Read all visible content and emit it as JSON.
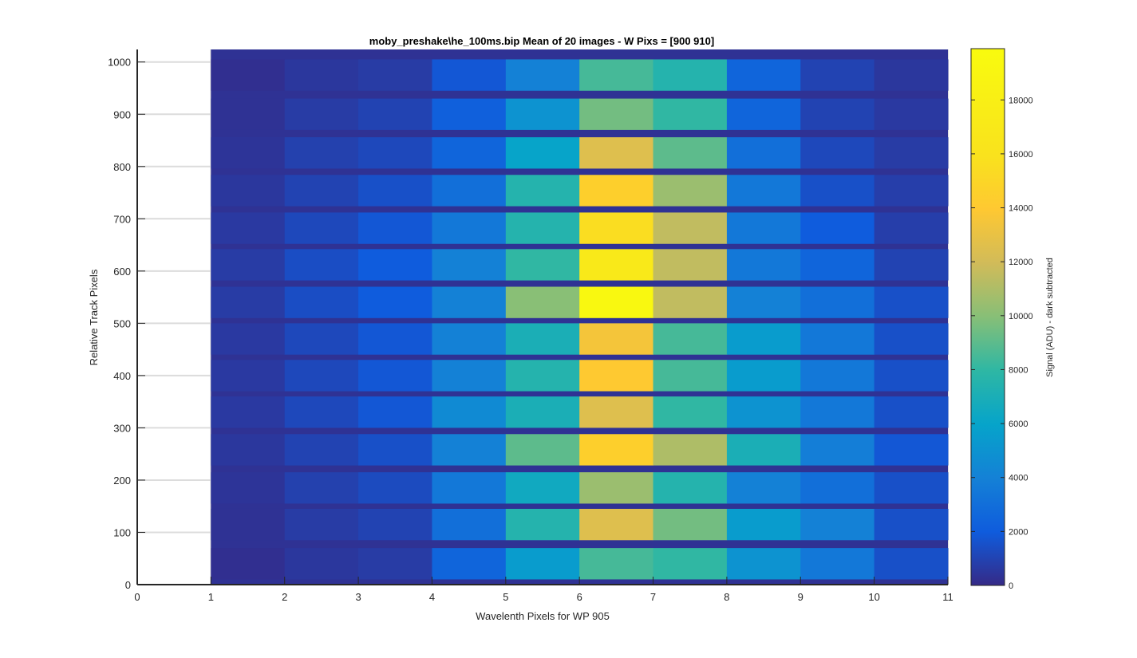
{
  "chart_data": {
    "type": "heatmap",
    "title": "moby_preshake\\he_100ms.bip  Mean of 20 images - W Pixs = [900  910]",
    "xlabel": "Wavelenth Pixels for WP 905",
    "ylabel": "Relative Track Pixels",
    "xlim": [
      0,
      11
    ],
    "ylim": [
      0,
      1024
    ],
    "grid": true,
    "colormap": "parula",
    "x_ticks": [
      "0",
      "1",
      "2",
      "3",
      "4",
      "5",
      "6",
      "7",
      "8",
      "9",
      "10",
      "11"
    ],
    "y_ticks": [
      "0",
      "100",
      "200",
      "300",
      "400",
      "500",
      "600",
      "700",
      "800",
      "900",
      "1000"
    ],
    "colorbar": {
      "label": "Signal (ADU) - dark subtracted",
      "range": [
        0,
        19900
      ],
      "ticks": [
        "0",
        "2000",
        "4000",
        "6000",
        "8000",
        "10000",
        "12000",
        "14000",
        "16000",
        "18000"
      ]
    },
    "columns": [
      1,
      2,
      3,
      4,
      5,
      6,
      7,
      8,
      9,
      10
    ],
    "bands": [
      {
        "y0": 10,
        "y1": 70,
        "values": [
          200,
          500,
          700,
          2500,
          5500,
          8500,
          8000,
          5000,
          3500,
          1500
        ]
      },
      {
        "y0": 85,
        "y1": 145,
        "values": [
          300,
          700,
          1000,
          3000,
          7500,
          12500,
          9500,
          5500,
          4000,
          1500
        ]
      },
      {
        "y0": 155,
        "y1": 215,
        "values": [
          400,
          900,
          1300,
          3500,
          6500,
          10500,
          7500,
          4000,
          3000,
          1500
        ]
      },
      {
        "y0": 228,
        "y1": 288,
        "values": [
          500,
          1000,
          1500,
          4000,
          9000,
          14500,
          11000,
          7000,
          3800,
          1800
        ]
      },
      {
        "y0": 300,
        "y1": 360,
        "values": [
          600,
          1200,
          1800,
          4500,
          7000,
          12500,
          8000,
          5000,
          3500,
          1500
        ]
      },
      {
        "y0": 370,
        "y1": 430,
        "values": [
          600,
          1200,
          1800,
          4000,
          7500,
          14000,
          8500,
          5500,
          3500,
          1500
        ]
      },
      {
        "y0": 440,
        "y1": 500,
        "values": [
          600,
          1200,
          1800,
          4000,
          7000,
          13500,
          8500,
          5500,
          3500,
          1500
        ]
      },
      {
        "y0": 510,
        "y1": 570,
        "values": [
          700,
          1400,
          2000,
          4000,
          10000,
          19500,
          11500,
          4000,
          3000,
          1500
        ]
      },
      {
        "y0": 582,
        "y1": 642,
        "values": [
          700,
          1400,
          2000,
          4000,
          8000,
          17000,
          11500,
          3500,
          2500,
          1000
        ]
      },
      {
        "y0": 652,
        "y1": 712,
        "values": [
          600,
          1200,
          1800,
          3500,
          7500,
          15500,
          11500,
          3500,
          2000,
          800
        ]
      },
      {
        "y0": 724,
        "y1": 784,
        "values": [
          500,
          1000,
          1500,
          3000,
          7500,
          14500,
          10500,
          3500,
          1500,
          800
        ]
      },
      {
        "y0": 796,
        "y1": 856,
        "values": [
          400,
          900,
          1200,
          2500,
          6000,
          12500,
          9000,
          3000,
          1200,
          700
        ]
      },
      {
        "y0": 870,
        "y1": 930,
        "values": [
          300,
          700,
          1000,
          2200,
          5000,
          9500,
          8000,
          2500,
          1000,
          600
        ]
      },
      {
        "y0": 945,
        "y1": 1005,
        "values": [
          200,
          500,
          700,
          1800,
          4000,
          8500,
          7500,
          2500,
          1000,
          500
        ]
      }
    ]
  }
}
